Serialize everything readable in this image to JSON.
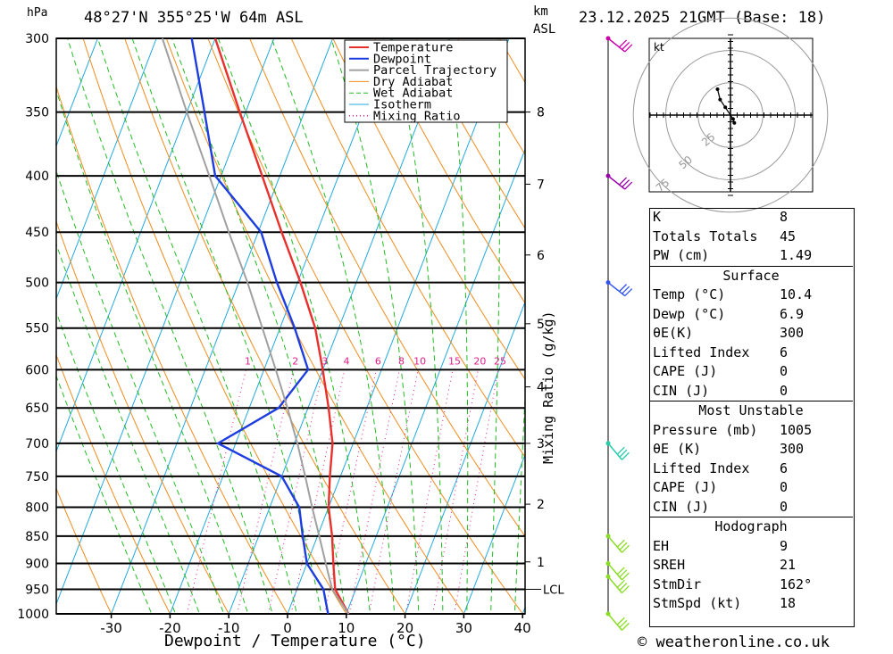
{
  "header": {
    "location": "48°27'N  355°25'W  64m  ASL",
    "datetime": "23.12.2025  21GMT  (Base: 18)",
    "unit_hpa": "hPa",
    "unit_km": "km",
    "unit_asl": "ASL"
  },
  "chart_data": {
    "type": "line",
    "xlabel": "Dewpoint / Temperature (°C)",
    "ylabel": "hPa",
    "y_scale": "log",
    "xlim": [
      -40,
      40
    ],
    "ylim": [
      1000,
      300
    ],
    "x_ticks": [
      -30,
      -20,
      -10,
      0,
      10,
      20,
      30,
      40
    ],
    "pressure_levels": [
      300,
      350,
      400,
      450,
      500,
      550,
      600,
      650,
      700,
      750,
      800,
      850,
      900,
      950,
      1000
    ],
    "height_km_labels": [
      {
        "km": "8",
        "p": 350
      },
      {
        "km": "7",
        "p": 407
      },
      {
        "km": "6",
        "p": 472
      },
      {
        "km": "5",
        "p": 545
      },
      {
        "km": "4",
        "p": 622
      },
      {
        "km": "3",
        "p": 700
      },
      {
        "km": "2",
        "p": 795
      },
      {
        "km": "1",
        "p": 897
      }
    ],
    "lcl_label": "LCL",
    "lcl_pressure": 950,
    "mixing_ratio_label": "Mixing Ratio (g/kg)",
    "mixing_ratio_values": [
      "1",
      "2",
      "3",
      "4",
      "6",
      "8",
      "10",
      "15",
      "20",
      "25"
    ],
    "legend": [
      "Temperature",
      "Dewpoint",
      "Parcel Trajectory",
      "Dry Adiabat",
      "Wet Adiabat",
      "Isotherm",
      "Mixing Ratio"
    ],
    "legend_position": "top-right",
    "colors": {
      "temperature": "#e8312c",
      "dewpoint": "#1e3de0",
      "parcel": "#a0a0a0",
      "dry_adiabat": "#f08c1e",
      "wet_adiabat": "#22bb22",
      "isotherm": "#22aadd",
      "mixing_ratio": "#e0208a"
    },
    "series": [
      {
        "name": "Temperature",
        "points": [
          {
            "p": 1000,
            "t": 10.4
          },
          {
            "p": 950,
            "t": 6.5
          },
          {
            "p": 900,
            "t": 4.5
          },
          {
            "p": 850,
            "t": 2.5
          },
          {
            "p": 800,
            "t": 0.0
          },
          {
            "p": 750,
            "t": -1.8
          },
          {
            "p": 700,
            "t": -3.5
          },
          {
            "p": 650,
            "t": -6.5
          },
          {
            "p": 600,
            "t": -10.0
          },
          {
            "p": 550,
            "t": -14.0
          },
          {
            "p": 500,
            "t": -19.5
          },
          {
            "p": 450,
            "t": -26.0
          },
          {
            "p": 400,
            "t": -33.0
          },
          {
            "p": 350,
            "t": -41.0
          },
          {
            "p": 300,
            "t": -50.0
          }
        ]
      },
      {
        "name": "Dewpoint",
        "points": [
          {
            "p": 1000,
            "t": 6.9
          },
          {
            "p": 950,
            "t": 4.5
          },
          {
            "p": 900,
            "t": 0.0
          },
          {
            "p": 850,
            "t": -2.5
          },
          {
            "p": 800,
            "t": -5.0
          },
          {
            "p": 750,
            "t": -10.0
          },
          {
            "p": 700,
            "t": -23.0
          },
          {
            "p": 650,
            "t": -15.0
          },
          {
            "p": 600,
            "t": -12.5
          },
          {
            "p": 550,
            "t": -17.5
          },
          {
            "p": 500,
            "t": -23.5
          },
          {
            "p": 450,
            "t": -29.5
          },
          {
            "p": 400,
            "t": -41.0
          },
          {
            "p": 350,
            "t": -47.0
          },
          {
            "p": 300,
            "t": -54.0
          }
        ]
      },
      {
        "name": "Parcel Trajectory",
        "points": [
          {
            "p": 1000,
            "t": 10.4
          },
          {
            "p": 950,
            "t": 6.0
          },
          {
            "p": 900,
            "t": 3.2
          },
          {
            "p": 850,
            "t": 0.3
          },
          {
            "p": 800,
            "t": -2.8
          },
          {
            "p": 750,
            "t": -6.0
          },
          {
            "p": 700,
            "t": -9.5
          },
          {
            "p": 650,
            "t": -13.5
          },
          {
            "p": 600,
            "t": -18.0
          },
          {
            "p": 550,
            "t": -23.0
          },
          {
            "p": 500,
            "t": -28.5
          },
          {
            "p": 450,
            "t": -35.0
          },
          {
            "p": 400,
            "t": -42.0
          },
          {
            "p": 350,
            "t": -50.0
          },
          {
            "p": 300,
            "t": -59.0
          }
        ]
      }
    ],
    "wind_barbs": [
      {
        "p": 300,
        "color": "#cc00aa"
      },
      {
        "p": 400,
        "color": "#9900aa"
      },
      {
        "p": 500,
        "color": "#3355ee"
      },
      {
        "p": 700,
        "color": "#22ccaa"
      },
      {
        "p": 850,
        "color": "#88dd22"
      },
      {
        "p": 900,
        "color": "#88dd22"
      },
      {
        "p": 925,
        "color": "#88dd22"
      },
      {
        "p": 1000,
        "color": "#88dd22"
      }
    ],
    "hodograph": {
      "unit": "kt",
      "ring_labels": [
        "25",
        "50",
        "75"
      ],
      "points": [
        {
          "u": 3,
          "v": -6
        },
        {
          "u": 2,
          "v": -3
        },
        {
          "u": -4,
          "v": 6
        },
        {
          "u": -8,
          "v": 12
        },
        {
          "u": -10,
          "v": 20
        }
      ]
    }
  },
  "indices": {
    "general": [
      {
        "label": "K",
        "value": "8"
      },
      {
        "label": "Totals Totals",
        "value": "45"
      },
      {
        "label": "PW (cm)",
        "value": "1.49"
      }
    ],
    "surface_title": "Surface",
    "surface": [
      {
        "label": "Temp (°C)",
        "value": "10.4"
      },
      {
        "label": "Dewp (°C)",
        "value": "6.9"
      },
      {
        "label": "θE(K)",
        "value": "300"
      },
      {
        "label": "Lifted Index",
        "value": "6"
      },
      {
        "label": "CAPE (J)",
        "value": "0"
      },
      {
        "label": "CIN (J)",
        "value": "0"
      }
    ],
    "unstable_title": "Most Unstable",
    "unstable": [
      {
        "label": "Pressure (mb)",
        "value": "1005"
      },
      {
        "label": "θE (K)",
        "value": "300"
      },
      {
        "label": "Lifted Index",
        "value": "6"
      },
      {
        "label": "CAPE (J)",
        "value": "0"
      },
      {
        "label": "CIN (J)",
        "value": "0"
      }
    ],
    "hodograph_title": "Hodograph",
    "hodograph": [
      {
        "label": "EH",
        "value": "9"
      },
      {
        "label": "SREH",
        "value": "21"
      },
      {
        "label": "StmDir",
        "value": "162°"
      },
      {
        "label": "StmSpd (kt)",
        "value": "18"
      }
    ]
  },
  "footer": {
    "copyright": "© weatheronline.co.uk"
  }
}
